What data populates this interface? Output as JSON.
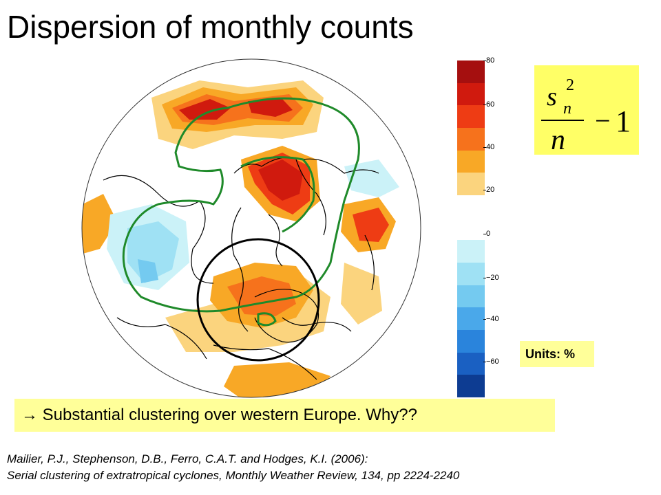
{
  "slide": {
    "title": "Dispersion of monthly counts",
    "callout": "→ Substantial clustering over western Europe. Why??",
    "units_label": "Units: %",
    "citation_line1": "Mailier, P.J., Stephenson, D.B., Ferro, C.A.T. and Hodges, K.I. (2006):",
    "citation_line2": "Serial clustering of extratropical cyclones, Monthly Weather Review, 134, pp 2224-2240"
  },
  "formula": {
    "numerator_base": "s",
    "subscript": "n",
    "superscript": "2",
    "denominator": "n",
    "operator": "−",
    "constant": "1"
  },
  "colorbar": {
    "tick_labels": [
      "80",
      "60",
      "40",
      "20",
      "0",
      "−20",
      "−40",
      "−60"
    ],
    "colors": [
      "#a50f0f",
      "#d01a0e",
      "#ee3c14",
      "#f6721c",
      "#f8a826",
      "#fbd47e",
      "#ffffff",
      "#ffffff",
      "#cbf2f8",
      "#9fe1f4",
      "#74caf0",
      "#4aa8ea",
      "#2a84dc",
      "#1a60c2",
      "#0d3c92"
    ]
  }
}
